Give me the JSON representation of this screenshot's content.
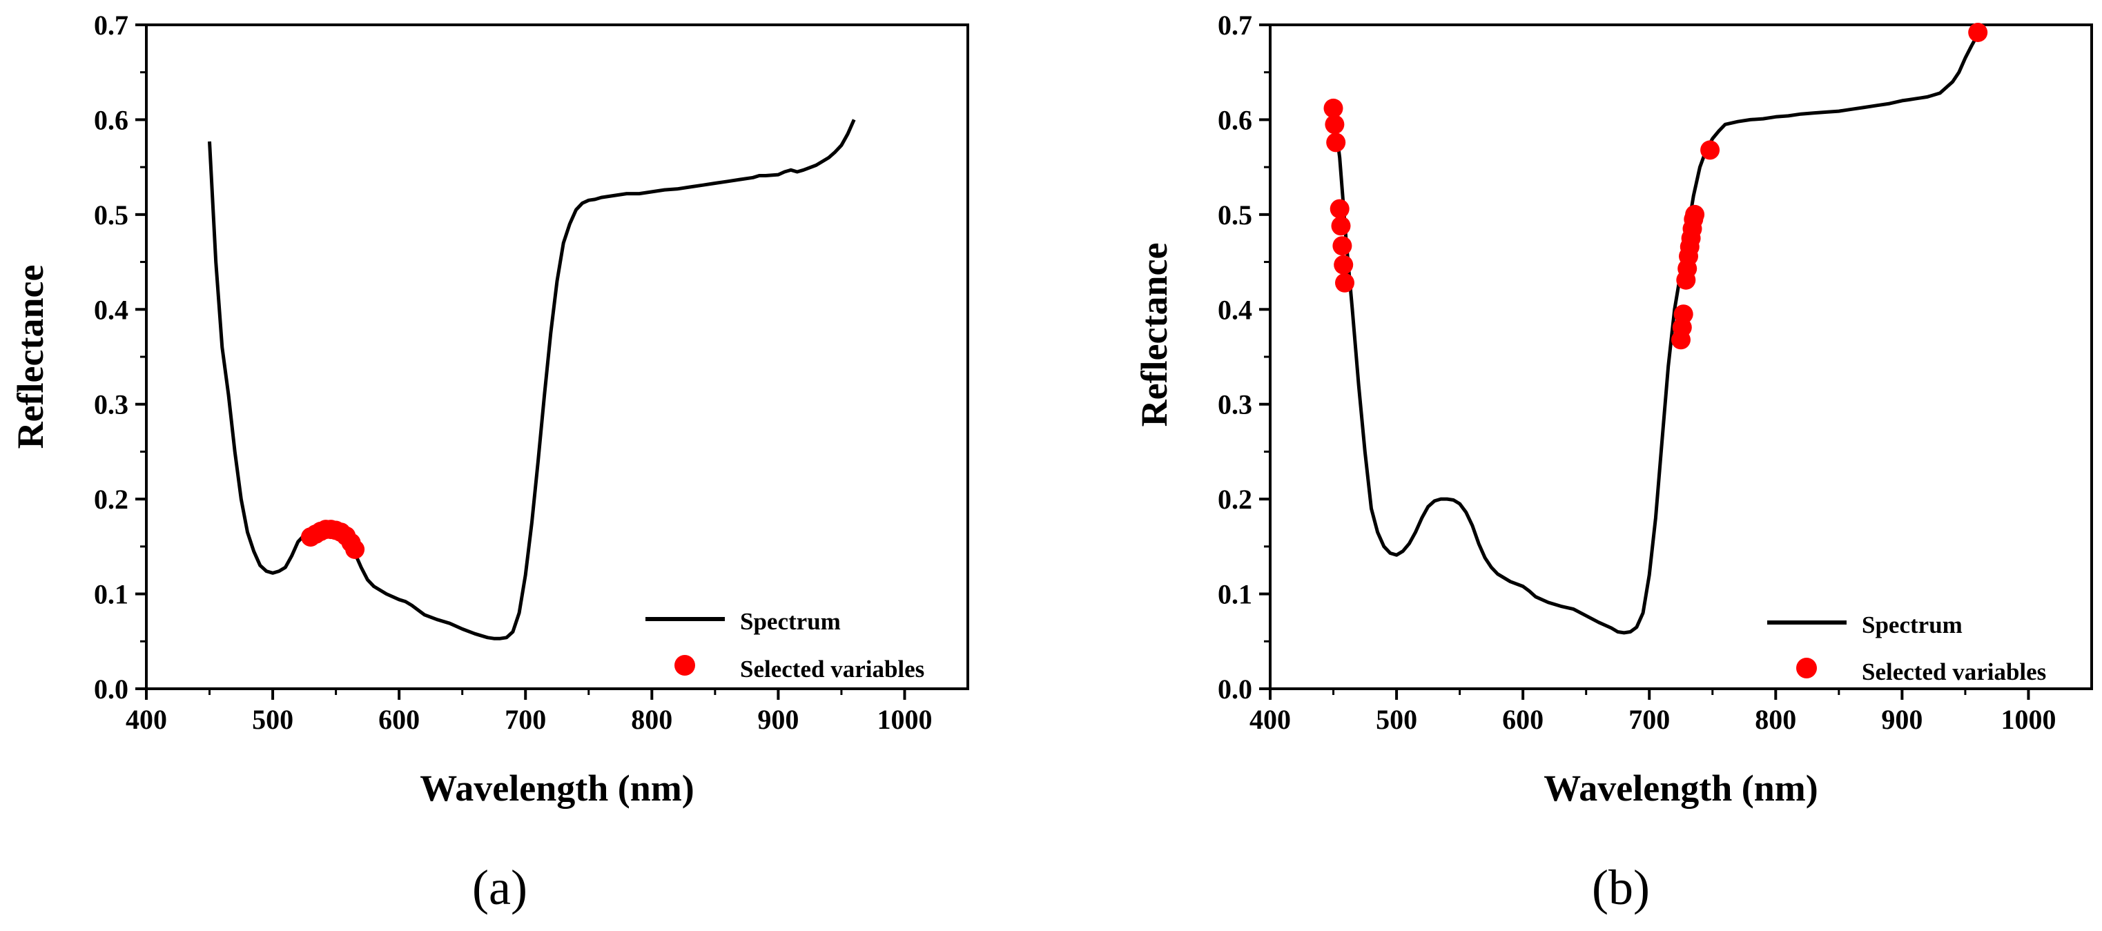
{
  "chart_data": [
    {
      "type": "line",
      "panel_label": "(a)",
      "xlabel": "Wavelength (nm)",
      "ylabel": "Reflectance",
      "xlim": [
        400,
        1050
      ],
      "ylim": [
        0.0,
        0.7
      ],
      "x_ticks": [
        "400",
        "500",
        "600",
        "700",
        "800",
        "900",
        "1000"
      ],
      "y_ticks": [
        "0.0",
        "0.1",
        "0.2",
        "0.3",
        "0.4",
        "0.5",
        "0.6",
        "0.7"
      ],
      "grid": false,
      "legend": {
        "placement": "bottom-right",
        "entries": [
          "Spectrum",
          "Selected variables"
        ]
      },
      "series": [
        {
          "name": "Spectrum",
          "kind": "line",
          "color": "#000000",
          "x": [
            450,
            455,
            460,
            465,
            470,
            475,
            480,
            485,
            490,
            495,
            500,
            505,
            510,
            515,
            520,
            525,
            530,
            535,
            540,
            545,
            550,
            555,
            560,
            565,
            570,
            575,
            580,
            590,
            600,
            605,
            610,
            620,
            630,
            640,
            650,
            660,
            670,
            675,
            680,
            685,
            690,
            695,
            700,
            705,
            710,
            715,
            720,
            725,
            730,
            735,
            740,
            745,
            750,
            755,
            760,
            770,
            780,
            790,
            800,
            810,
            820,
            830,
            840,
            850,
            860,
            870,
            880,
            885,
            890,
            900,
            905,
            910,
            915,
            920,
            930,
            940,
            945,
            950,
            955,
            960
          ],
          "y": [
            0.577,
            0.45,
            0.36,
            0.31,
            0.25,
            0.2,
            0.165,
            0.145,
            0.13,
            0.124,
            0.122,
            0.124,
            0.128,
            0.14,
            0.155,
            0.162,
            0.166,
            0.168,
            0.169,
            0.168,
            0.166,
            0.161,
            0.153,
            0.143,
            0.128,
            0.115,
            0.108,
            0.1,
            0.094,
            0.092,
            0.088,
            0.078,
            0.073,
            0.069,
            0.063,
            0.058,
            0.054,
            0.053,
            0.053,
            0.054,
            0.06,
            0.08,
            0.12,
            0.175,
            0.24,
            0.31,
            0.375,
            0.43,
            0.47,
            0.49,
            0.505,
            0.512,
            0.515,
            0.516,
            0.518,
            0.52,
            0.522,
            0.522,
            0.524,
            0.526,
            0.527,
            0.529,
            0.531,
            0.533,
            0.535,
            0.537,
            0.539,
            0.541,
            0.541,
            0.542,
            0.545,
            0.547,
            0.545,
            0.547,
            0.552,
            0.56,
            0.566,
            0.573,
            0.585,
            0.6
          ]
        },
        {
          "name": "Selected variables",
          "kind": "scatter",
          "color": "#ff0000",
          "x": [
            530,
            534,
            538,
            542,
            546,
            550,
            554,
            558,
            562,
            565
          ],
          "y": [
            0.16,
            0.163,
            0.166,
            0.168,
            0.168,
            0.167,
            0.165,
            0.161,
            0.154,
            0.147
          ]
        }
      ]
    },
    {
      "type": "line",
      "panel_label": "(b)",
      "xlabel": "Wavelength (nm)",
      "ylabel": "Reflectance",
      "xlim": [
        400,
        1050
      ],
      "ylim": [
        0.0,
        0.7
      ],
      "x_ticks": [
        "400",
        "500",
        "600",
        "700",
        "800",
        "900",
        "1000"
      ],
      "y_ticks": [
        "0.0",
        "0.1",
        "0.2",
        "0.3",
        "0.4",
        "0.5",
        "0.6",
        "0.7"
      ],
      "grid": false,
      "legend": {
        "placement": "bottom-right",
        "entries": [
          "Spectrum",
          "Selected variables"
        ]
      },
      "series": [
        {
          "name": "Spectrum",
          "kind": "line",
          "color": "#000000",
          "x": [
            450,
            455,
            460,
            465,
            470,
            475,
            480,
            485,
            490,
            495,
            500,
            505,
            510,
            515,
            520,
            525,
            530,
            535,
            540,
            545,
            550,
            555,
            560,
            565,
            570,
            575,
            580,
            590,
            600,
            605,
            610,
            620,
            630,
            640,
            650,
            660,
            670,
            675,
            680,
            685,
            690,
            695,
            700,
            705,
            710,
            715,
            720,
            725,
            730,
            735,
            740,
            745,
            750,
            755,
            760,
            770,
            780,
            790,
            800,
            810,
            820,
            830,
            840,
            850,
            860,
            870,
            880,
            890,
            900,
            905,
            910,
            915,
            920,
            930,
            940,
            945,
            950,
            955,
            960
          ],
          "y": [
            0.612,
            0.56,
            0.475,
            0.4,
            0.32,
            0.25,
            0.19,
            0.165,
            0.15,
            0.143,
            0.141,
            0.145,
            0.153,
            0.165,
            0.18,
            0.192,
            0.198,
            0.2,
            0.2,
            0.199,
            0.195,
            0.186,
            0.172,
            0.153,
            0.138,
            0.128,
            0.121,
            0.113,
            0.108,
            0.103,
            0.097,
            0.091,
            0.087,
            0.084,
            0.077,
            0.07,
            0.064,
            0.06,
            0.059,
            0.06,
            0.065,
            0.08,
            0.12,
            0.18,
            0.26,
            0.34,
            0.4,
            0.44,
            0.48,
            0.52,
            0.55,
            0.568,
            0.58,
            0.588,
            0.595,
            0.598,
            0.6,
            0.601,
            0.603,
            0.604,
            0.606,
            0.607,
            0.608,
            0.609,
            0.611,
            0.613,
            0.615,
            0.617,
            0.62,
            0.621,
            0.622,
            0.623,
            0.624,
            0.628,
            0.64,
            0.65,
            0.665,
            0.678,
            0.69
          ]
        },
        {
          "name": "Selected variables",
          "kind": "scatter",
          "color": "#ff0000",
          "x": [
            450,
            451,
            452,
            455,
            456,
            457,
            458,
            459,
            725,
            726,
            727,
            729,
            730,
            731,
            732,
            733,
            734,
            735,
            736,
            748,
            960
          ],
          "y": [
            0.612,
            0.595,
            0.576,
            0.506,
            0.488,
            0.467,
            0.447,
            0.428,
            0.368,
            0.381,
            0.395,
            0.431,
            0.443,
            0.456,
            0.466,
            0.475,
            0.485,
            0.495,
            0.5,
            0.568,
            0.692
          ]
        }
      ]
    }
  ]
}
